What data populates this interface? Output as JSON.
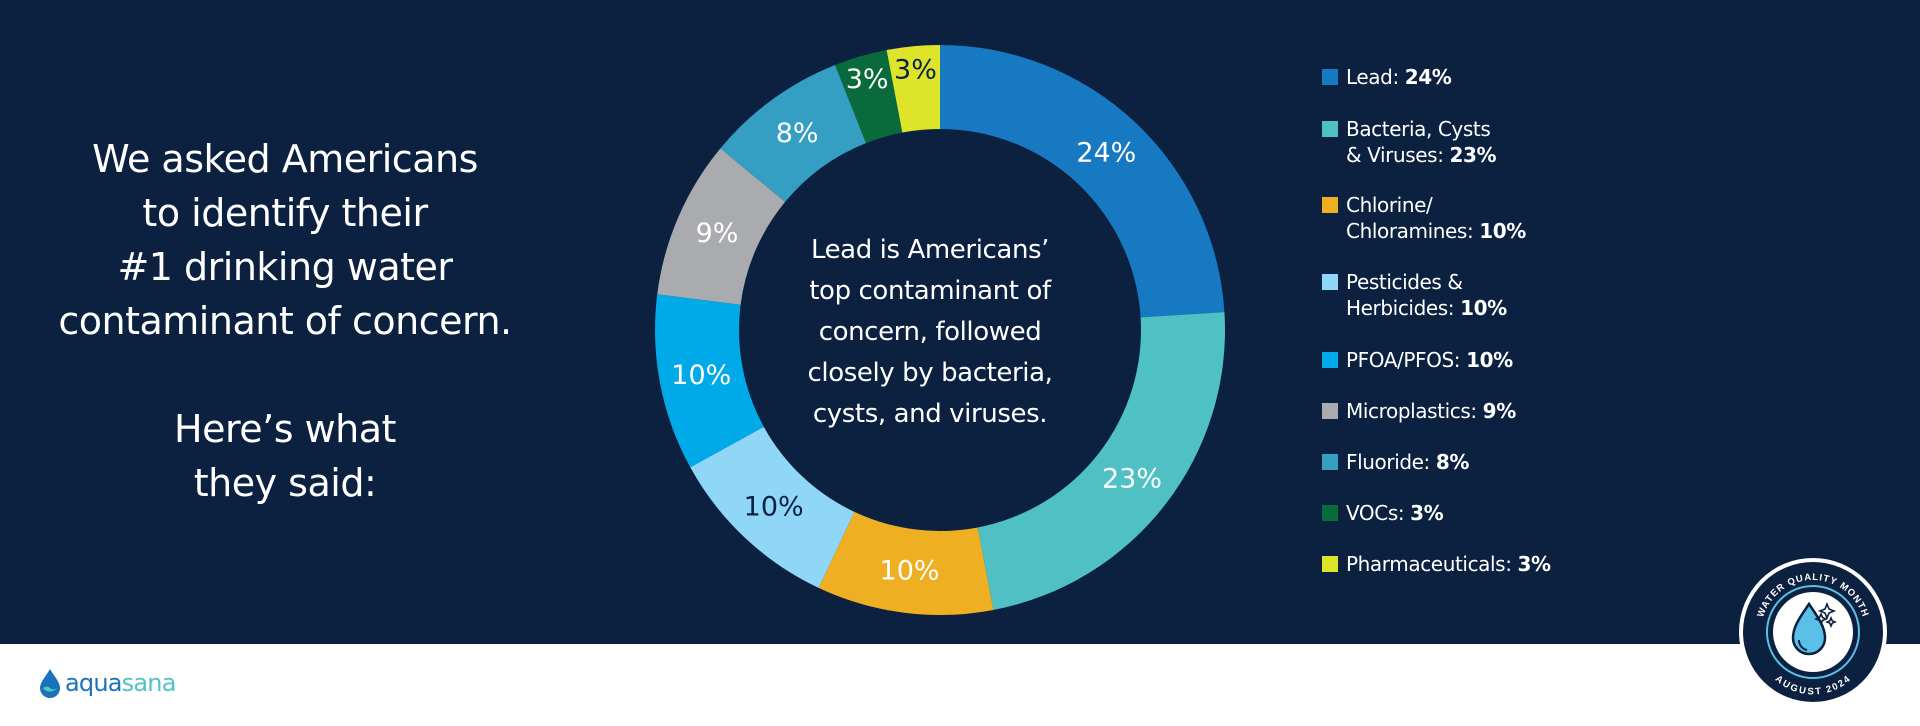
{
  "intro": {
    "lines": [
      "We asked Americans",
      "to identify their",
      "#1 drinking water",
      "contaminant of concern."
    ],
    "lines2": [
      "Here’s what",
      "they said:"
    ]
  },
  "center_text": {
    "lines": [
      "Lead is Americans’",
      "top contaminant of",
      "concern, followed",
      "closely by bacteria,",
      "cysts, and viruses."
    ]
  },
  "legend": [
    {
      "lines": [
        "Lead: "
      ],
      "value": "24%",
      "color": "#1679c2"
    },
    {
      "lines": [
        "Bacteria, Cysts",
        "& Viruses: "
      ],
      "value": "23%",
      "color": "#4fc1c5"
    },
    {
      "lines": [
        "Chlorine/",
        "Chloramines: "
      ],
      "value": "10%",
      "color": "#efaf22"
    },
    {
      "lines": [
        "Pesticides &",
        "Herbicides: "
      ],
      "value": "10%",
      "color": "#8fd6f7"
    },
    {
      "lines": [
        "PFOA/PFOS: "
      ],
      "value": "10%",
      "color": "#00a9e8"
    },
    {
      "lines": [
        "Microplastics: "
      ],
      "value": "9%",
      "color": "#a9abae"
    },
    {
      "lines": [
        "Fluoride: "
      ],
      "value": "8%",
      "color": "#359ec3"
    },
    {
      "lines": [
        "VOCs: "
      ],
      "value": "3%",
      "color": "#096b3c"
    },
    {
      "lines": [
        "Pharmaceuticals: "
      ],
      "value": "3%",
      "color": "#dde42a"
    }
  ],
  "chart_data": {
    "type": "pie",
    "variant": "donut",
    "title": "",
    "start": "top",
    "direction": "clockwise",
    "categories": [
      "Lead",
      "Bacteria, Cysts & Viruses",
      "Chlorine/Chloramines",
      "Pesticides & Herbicides",
      "PFOA/PFOS",
      "Microplastics",
      "Fluoride",
      "VOCs",
      "Pharmaceuticals"
    ],
    "values": [
      24,
      23,
      10,
      10,
      10,
      9,
      8,
      3,
      3
    ],
    "unit": "%",
    "data_labels": [
      "24%",
      "23%",
      "10%",
      "10%",
      "10%",
      "9%",
      "8%",
      "3%",
      "3%"
    ],
    "colors": [
      "#1679c2",
      "#4fc1c5",
      "#efaf22",
      "#8fd6f7",
      "#00a9e8",
      "#a9abae",
      "#359ec3",
      "#096b3c",
      "#dde42a"
    ],
    "label_colors": [
      "#ffffff",
      "#ffffff",
      "#ffffff",
      "#0b213f",
      "#ffffff",
      "#ffffff",
      "#ffffff",
      "#ffffff",
      "#0b213f"
    ],
    "legend_position": "right"
  },
  "logo": {
    "part1": "aqua",
    "part2": "sana"
  },
  "badge": {
    "top_text": "WATER QUALITY MONTH",
    "bottom_text": "AUGUST 2024"
  },
  "colors": {
    "background": "#0b213f",
    "footer": "#ffffff",
    "text": "#ffffff"
  }
}
